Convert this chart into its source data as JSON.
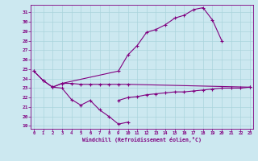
{
  "xlabel": "Windchill (Refroidissement éolien,°C)",
  "bg_color": "#cce8f0",
  "line_color": "#800080",
  "grid_color": "#aad4dc",
  "yticks": [
    19,
    20,
    21,
    22,
    23,
    24,
    25,
    26,
    27,
    28,
    29,
    30,
    31
  ],
  "xticks": [
    0,
    1,
    2,
    3,
    4,
    5,
    6,
    7,
    8,
    9,
    10,
    11,
    12,
    13,
    14,
    15,
    16,
    17,
    18,
    19,
    20,
    21,
    22,
    23
  ],
  "ylim": [
    18.7,
    31.8
  ],
  "xlim": [
    -0.3,
    23.3
  ],
  "s1_x": [
    0,
    1,
    2,
    3,
    9,
    10,
    11,
    12,
    13,
    14,
    15,
    16,
    17,
    18,
    19,
    20,
    21,
    22,
    23
  ],
  "s1_y": [
    24.8,
    23.8,
    23.1,
    23.5,
    24.8,
    26.5,
    27.5,
    28.9,
    29.2,
    29.7,
    30.4,
    30.7,
    31.3,
    31.5,
    30.2,
    28.0,
    null,
    null,
    null
  ],
  "s2_x": [
    0,
    1,
    2,
    3,
    4,
    5,
    6,
    7,
    8,
    9,
    10,
    23
  ],
  "s2_y": [
    24.8,
    23.8,
    23.1,
    23.5,
    23.5,
    23.4,
    23.4,
    23.4,
    23.4,
    23.4,
    23.4,
    23.1
  ],
  "s3_x": [
    9,
    10,
    11,
    12,
    13,
    14,
    15,
    16,
    17,
    18,
    19,
    20,
    21,
    22,
    23
  ],
  "s3_y": [
    21.7,
    22.0,
    22.1,
    22.3,
    22.4,
    22.5,
    22.6,
    22.6,
    22.7,
    22.8,
    22.9,
    23.0,
    23.0,
    23.0,
    23.1
  ],
  "s4_x": [
    2,
    3,
    4,
    5,
    6,
    7,
    8,
    9,
    10
  ],
  "s4_y": [
    23.1,
    23.0,
    21.8,
    21.2,
    21.7,
    20.7,
    20.0,
    19.2,
    19.4
  ]
}
